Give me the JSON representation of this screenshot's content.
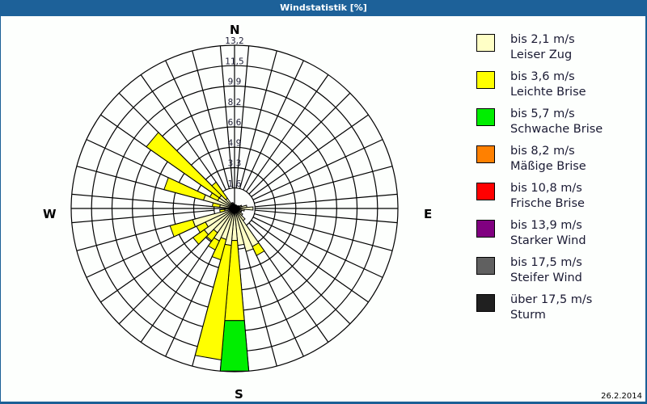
{
  "window": {
    "title": "Windstatistik [%]"
  },
  "compass": {
    "n": "N",
    "e": "E",
    "s": "S",
    "w": "W"
  },
  "footer": {
    "date": "26.2.2014"
  },
  "legend": [
    {
      "label": "bis 2,1 m/s",
      "name": "Leiser Zug",
      "color": "#ffffc6"
    },
    {
      "label": "bis 3,6 m/s",
      "name": "Leichte Brise",
      "color": "#ffff00"
    },
    {
      "label": "bis 5,7 m/s",
      "name": "Schwache Brise",
      "color": "#00ee00"
    },
    {
      "label": "bis 8,2 m/s",
      "name": "Mäßige Brise",
      "color": "#ff8000"
    },
    {
      "label": "bis 10,8 m/s",
      "name": "Frische Brise",
      "color": "#ff0000"
    },
    {
      "label": "bis 13,9 m/s",
      "name": "Starker Wind",
      "color": "#800080"
    },
    {
      "label": "bis 17,5 m/s",
      "name": "Steifer Wind",
      "color": "#606060"
    },
    {
      "label": "über 17,5 m/s",
      "name": "Sturm",
      "color": "#202020"
    }
  ],
  "chart_data": {
    "type": "wind-rose",
    "title": "Windstatistik [%]",
    "date": "26.2.2014",
    "radial_unit": "%",
    "radial_ticks": [
      "1,6",
      "3,3",
      "4,9",
      "6,6",
      "8,2",
      "9,9",
      "11,5",
      "13,2"
    ],
    "radial_max": 13.2,
    "direction_labels": [
      "N",
      "E",
      "S",
      "W"
    ],
    "sector_width_deg": 10,
    "series_names": [
      "Leiser Zug (bis 2,1 m/s)",
      "Leichte Brise (bis 3,6 m/s)",
      "Schwache Brise (bis 5,7 m/s)"
    ],
    "sectors": [
      {
        "dir": 0,
        "cum": [
          0.3,
          0.3,
          0.3
        ]
      },
      {
        "dir": 10,
        "cum": [
          0.3,
          0.3,
          0.3
        ]
      },
      {
        "dir": 20,
        "cum": [
          0.3,
          0.3,
          0.3
        ]
      },
      {
        "dir": 30,
        "cum": [
          0.3,
          0.3,
          0.3
        ]
      },
      {
        "dir": 40,
        "cum": [
          0.3,
          0.3,
          0.3
        ]
      },
      {
        "dir": 50,
        "cum": [
          0.3,
          0.3,
          0.3
        ]
      },
      {
        "dir": 60,
        "cum": [
          0.4,
          0.4,
          0.4
        ]
      },
      {
        "dir": 70,
        "cum": [
          0.6,
          0.6,
          0.6
        ]
      },
      {
        "dir": 80,
        "cum": [
          1.0,
          1.0,
          1.0
        ]
      },
      {
        "dir": 90,
        "cum": [
          1.5,
          1.5,
          1.5
        ]
      },
      {
        "dir": 100,
        "cum": [
          0.8,
          0.8,
          0.8
        ]
      },
      {
        "dir": 110,
        "cum": [
          0.6,
          0.6,
          0.6
        ]
      },
      {
        "dir": 120,
        "cum": [
          0.6,
          0.6,
          0.6
        ]
      },
      {
        "dir": 130,
        "cum": [
          0.8,
          0.8,
          0.8
        ]
      },
      {
        "dir": 140,
        "cum": [
          1.2,
          1.2,
          1.2
        ]
      },
      {
        "dir": 150,
        "cum": [
          3.4,
          4.2,
          4.2
        ]
      },
      {
        "dir": 160,
        "cum": [
          3.6,
          3.6,
          3.6
        ]
      },
      {
        "dir": 170,
        "cum": [
          3.0,
          3.0,
          3.0
        ]
      },
      {
        "dir": 180,
        "cum": [
          2.6,
          9.1,
          13.2
        ]
      },
      {
        "dir": 190,
        "cum": [
          3.0,
          12.3,
          12.3
        ]
      },
      {
        "dir": 200,
        "cum": [
          2.6,
          4.3,
          4.3
        ]
      },
      {
        "dir": 210,
        "cum": [
          2.9,
          3.7,
          3.7
        ]
      },
      {
        "dir": 220,
        "cum": [
          2.4,
          3.2,
          3.2
        ]
      },
      {
        "dir": 230,
        "cum": [
          3.0,
          4.1,
          4.1
        ]
      },
      {
        "dir": 240,
        "cum": [
          2.6,
          3.4,
          3.4
        ]
      },
      {
        "dir": 250,
        "cum": [
          3.5,
          5.4,
          5.4
        ]
      },
      {
        "dir": 260,
        "cum": [
          0.8,
          1.2,
          1.2
        ]
      },
      {
        "dir": 270,
        "cum": [
          0.5,
          0.5,
          0.5
        ]
      },
      {
        "dir": 280,
        "cum": [
          1.2,
          1.8,
          1.8
        ]
      },
      {
        "dir": 290,
        "cum": [
          2.6,
          5.9,
          5.9
        ]
      },
      {
        "dir": 300,
        "cum": [
          1.5,
          2.2,
          2.2
        ]
      },
      {
        "dir": 310,
        "cum": [
          1.5,
          8.7,
          8.7
        ]
      },
      {
        "dir": 320,
        "cum": [
          1.0,
          2.6,
          2.6
        ]
      },
      {
        "dir": 330,
        "cum": [
          0.5,
          0.5,
          0.5
        ]
      },
      {
        "dir": 340,
        "cum": [
          0.5,
          0.5,
          0.5
        ]
      },
      {
        "dir": 350,
        "cum": [
          0.4,
          0.4,
          0.4
        ]
      }
    ]
  }
}
